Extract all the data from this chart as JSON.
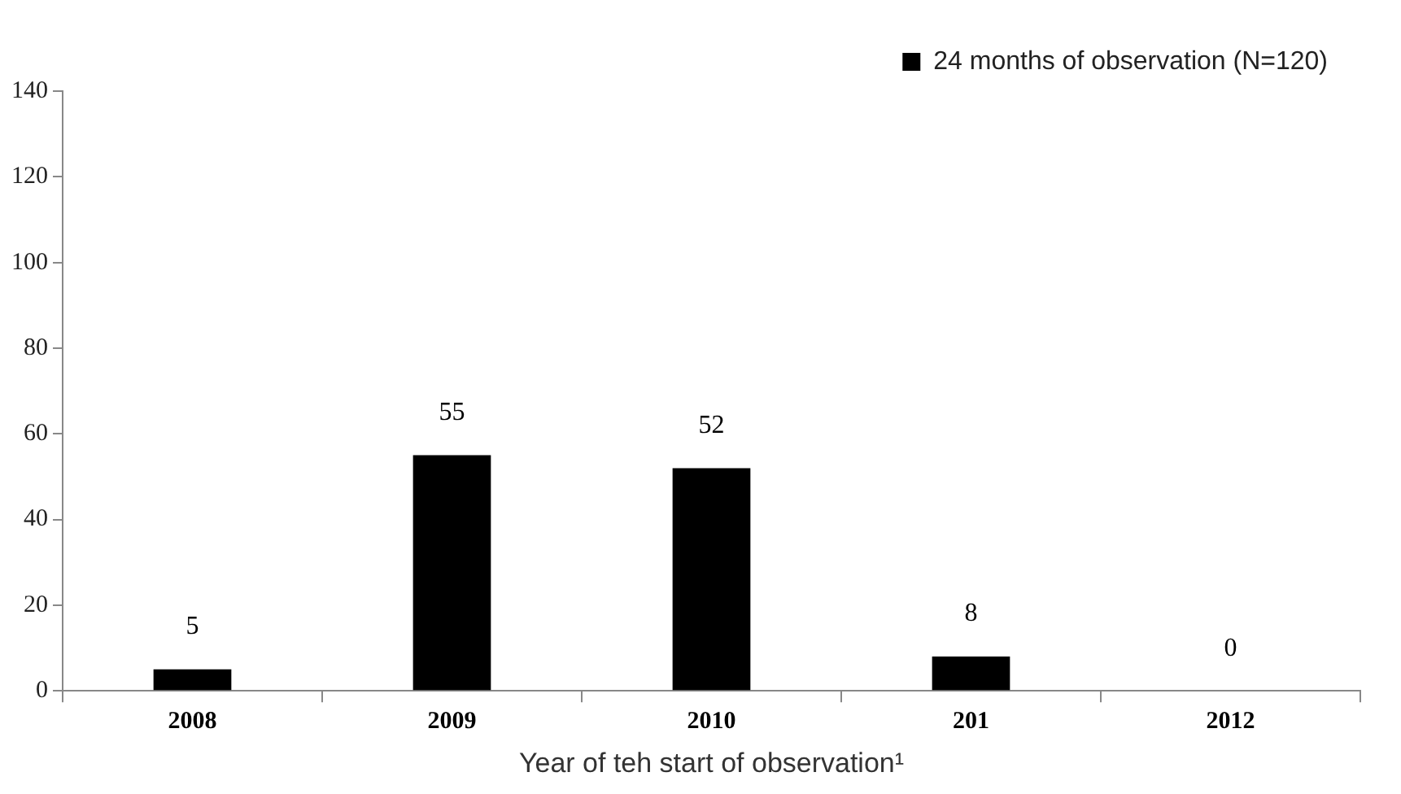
{
  "chart_data": {
    "type": "bar",
    "xlabel": "Year of teh start of observation¹",
    "categories": [
      "2008",
      "2009",
      "2010",
      "201",
      "2012"
    ],
    "series": [
      {
        "name": "24 months of observation (N=120)",
        "color": "#000000",
        "values": [
          5,
          55,
          52,
          8,
          0
        ]
      }
    ],
    "ylim": [
      0,
      140
    ],
    "yticks": [
      0,
      20,
      40,
      60,
      80,
      100,
      120,
      140
    ],
    "grid": false,
    "legend": "top right",
    "data_labels": true
  }
}
